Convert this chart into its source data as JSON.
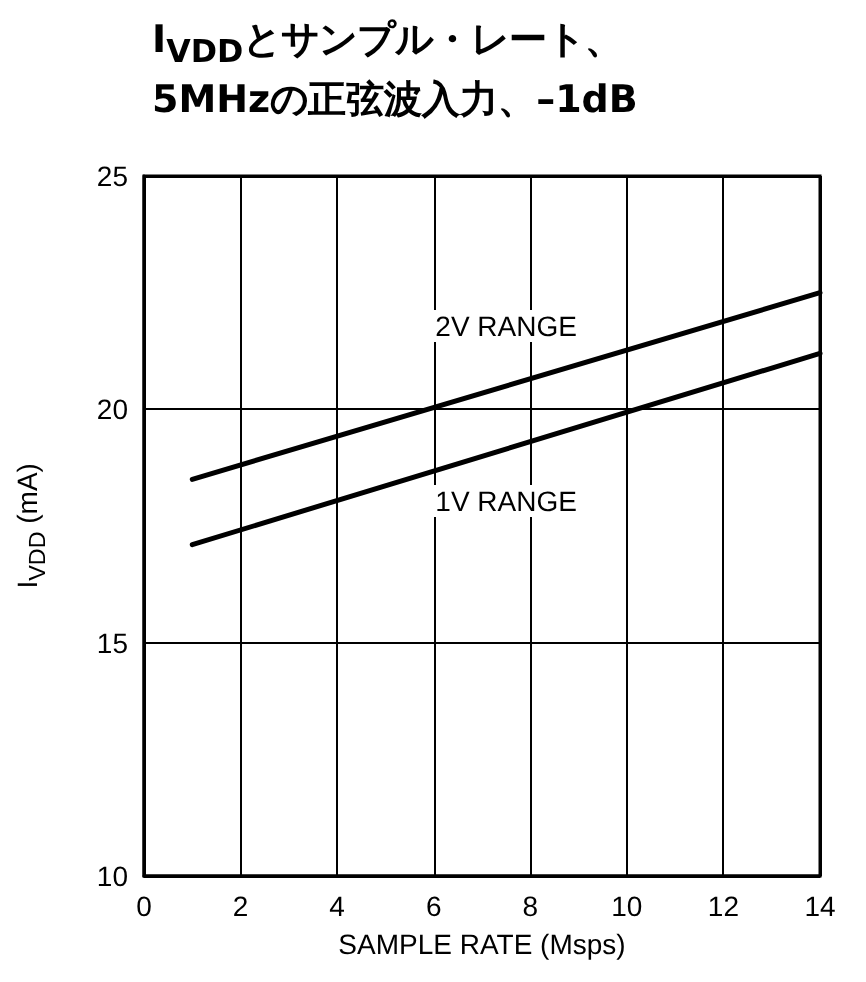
{
  "chart_data": {
    "type": "line",
    "title": "I$_{VDD}$とサンプル・レート、\n5MHzの正弦波入力、–1dB",
    "xlabel": "SAMPLE RATE (Msps)",
    "ylabel": "I$_{VDD}$ (mA)",
    "x": [
      1,
      14
    ],
    "series": [
      {
        "name": "2V RANGE",
        "color": "#000000",
        "values": [
          18.5,
          22.5
        ]
      },
      {
        "name": "1V RANGE",
        "color": "#000000",
        "values": [
          17.1,
          21.2
        ]
      }
    ],
    "xlim": [
      0,
      14
    ],
    "xticks": [
      0,
      2,
      4,
      6,
      8,
      10,
      12,
      14
    ],
    "ylim": [
      10,
      25
    ],
    "yticks": [
      10,
      15,
      20,
      25
    ],
    "grid": true,
    "marker": "none",
    "line_style": "solid"
  }
}
